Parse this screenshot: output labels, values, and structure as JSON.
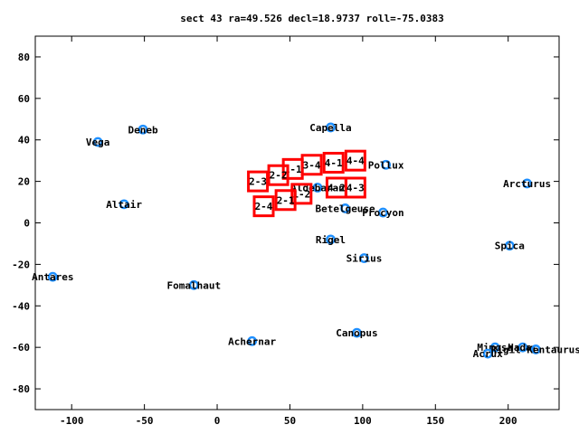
{
  "chart_data": {
    "type": "scatter",
    "title": "sect 43 ra=49.526 decl=18.9737 roll=-75.0383",
    "xlabel": "",
    "ylabel": "",
    "xlim": [
      -125,
      235
    ],
    "ylim": [
      -90,
      90
    ],
    "xticks": [
      -100,
      -50,
      0,
      50,
      100,
      150,
      200
    ],
    "yticks": [
      -80,
      -60,
      -40,
      -20,
      0,
      20,
      40,
      60,
      80
    ],
    "grid": false,
    "colors": {
      "star": "#1e8fff",
      "box": "#ff0000"
    },
    "series": [
      {
        "points": [
          {
            "label": "Vega",
            "x": -82,
            "y": 39
          },
          {
            "label": "Deneb",
            "x": -51,
            "y": 45
          },
          {
            "label": "Altair",
            "x": -64,
            "y": 9
          },
          {
            "label": "Antares",
            "x": -113,
            "y": -26
          },
          {
            "label": "Fomalhaut",
            "x": -16,
            "y": -30
          },
          {
            "label": "Achernar",
            "x": 24,
            "y": -57
          },
          {
            "label": "Capella",
            "x": 78,
            "y": 46
          },
          {
            "label": "Pollux",
            "x": 116,
            "y": 28
          },
          {
            "label": "Aldebaran",
            "x": 69,
            "y": 17
          },
          {
            "label": "Betelgeuse",
            "x": 88,
            "y": 7
          },
          {
            "label": "Procyon",
            "x": 114,
            "y": 5
          },
          {
            "label": "Rigel",
            "x": 78,
            "y": -8
          },
          {
            "label": "Sirius",
            "x": 101,
            "y": -17
          },
          {
            "label": "Canopus",
            "x": 96,
            "y": -53
          },
          {
            "label": "Arcturus",
            "x": 213,
            "y": 19
          },
          {
            "label": "Spica",
            "x": 201,
            "y": -11
          },
          {
            "label": "Mimosa",
            "x": 191,
            "y": -60
          },
          {
            "label": "Acrux",
            "x": 186,
            "y": -63
          },
          {
            "label": "Hadar",
            "x": 210,
            "y": -60
          },
          {
            "label": "Rigil Kentaurus",
            "x": 219,
            "y": -61
          }
        ]
      },
      {
        "boxes": [
          {
            "label": "1-1",
            "x": 52,
            "y": 26
          },
          {
            "label": "1-2",
            "x": 58,
            "y": 14
          },
          {
            "label": "2-1",
            "x": 47,
            "y": 11
          },
          {
            "label": "2-2",
            "x": 42,
            "y": 23
          },
          {
            "label": "2-3",
            "x": 28,
            "y": 20
          },
          {
            "label": "2-4",
            "x": 32,
            "y": 8
          },
          {
            "label": "3-4",
            "x": 65,
            "y": 28
          },
          {
            "label": "4-1",
            "x": 80,
            "y": 29
          },
          {
            "label": "4-4",
            "x": 95,
            "y": 30
          },
          {
            "label": "4-2",
            "x": 82,
            "y": 17
          },
          {
            "label": "4-3",
            "x": 95,
            "y": 17
          }
        ]
      }
    ]
  }
}
